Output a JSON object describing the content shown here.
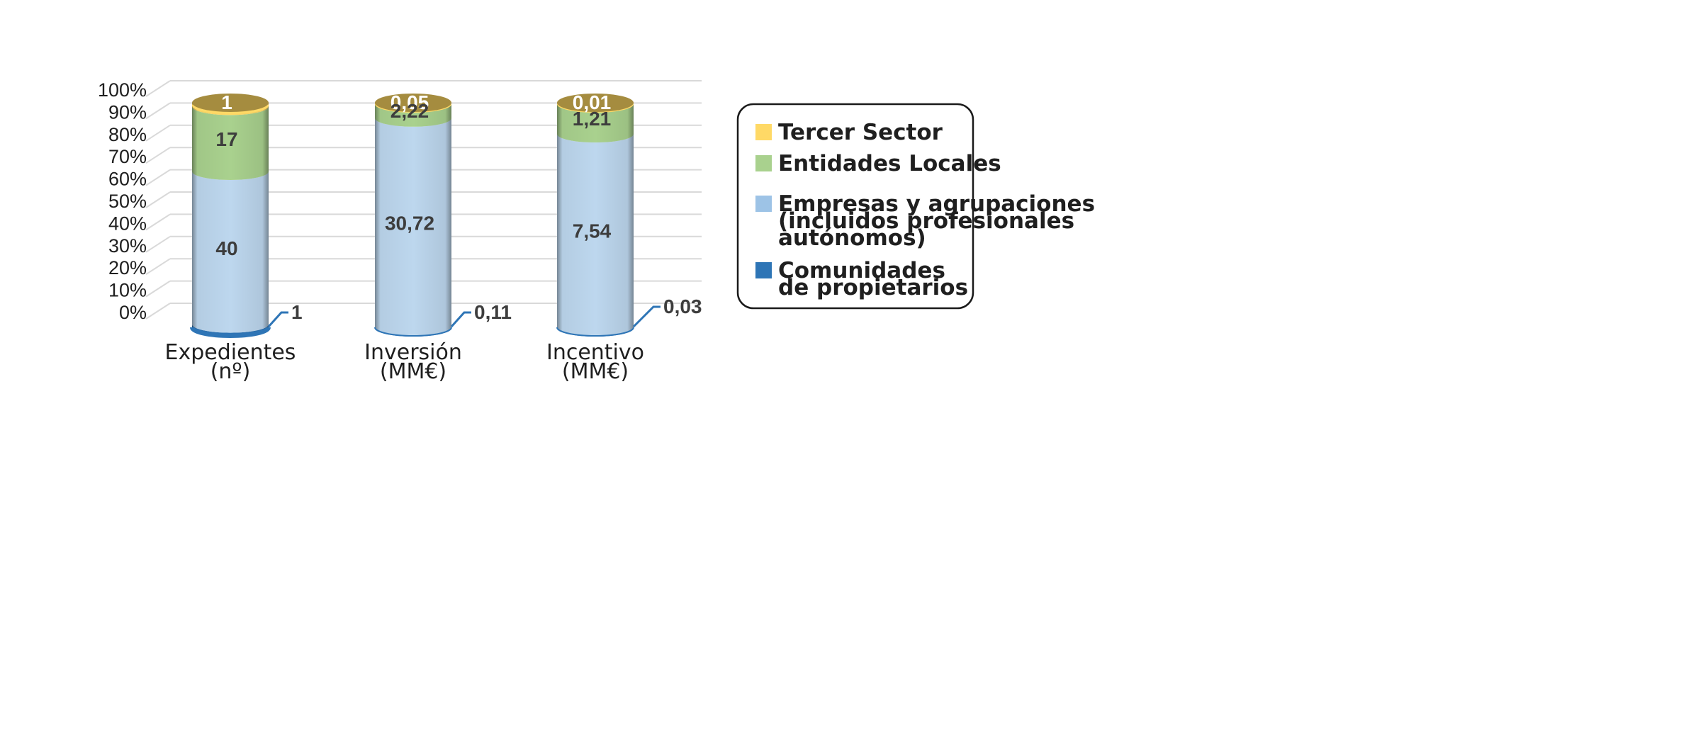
{
  "chart_data": {
    "type": "bar",
    "stacked": true,
    "percent_stacked": true,
    "style": "3d-cylinder",
    "title": "",
    "xlabel": "",
    "ylabel": "",
    "ylim": [
      0,
      100
    ],
    "yticks": [
      "0%",
      "10%",
      "20%",
      "30%",
      "40%",
      "50%",
      "60%",
      "70%",
      "80%",
      "90%",
      "100%"
    ],
    "grid": true,
    "legend_position": "right",
    "categories": [
      [
        "Expedientes",
        "(nº)"
      ],
      [
        "Inversión",
        "(MM€)"
      ],
      [
        "Incentivo",
        "(MM€)"
      ]
    ],
    "series": [
      {
        "name": "Comunidades de propietarios",
        "legend_lines": [
          "Comunidades",
          "de propietarios"
        ],
        "color": "#2e75b6",
        "values": [
          1,
          0.11,
          0.03
        ],
        "labels": [
          "1",
          "0,11",
          "0,03"
        ],
        "label_position": "outside"
      },
      {
        "name": "Empresas y agrupaciones (incluidos profesionales autónomos)",
        "legend_lines": [
          "Empresas y agrupaciones",
          "(incluidos profesionales",
          "autónomos)"
        ],
        "color": "#9dc3e6",
        "values": [
          40,
          30.72,
          7.54
        ],
        "labels": [
          "40",
          "30,72",
          "7,54"
        ],
        "label_position": "inside"
      },
      {
        "name": "Entidades Locales",
        "legend_lines": [
          "Entidades Locales"
        ],
        "color": "#a9d18e",
        "values": [
          17,
          2.22,
          1.21
        ],
        "labels": [
          "17",
          "2,22",
          "1,21"
        ],
        "label_position": "inside"
      },
      {
        "name": "Tercer Sector",
        "legend_lines": [
          "Tercer Sector"
        ],
        "color": "#ffd966",
        "values": [
          1,
          0.05,
          0.01
        ],
        "labels": [
          "1",
          "0,05",
          "0,01"
        ],
        "label_position": "top"
      }
    ],
    "colors": {
      "grid": "#d9d9d9",
      "cylinder_top": "#a58c3f",
      "side_light": "#bdd7ee",
      "side_green": "#a9d18e",
      "label_dark": "#3d3d3d"
    }
  }
}
